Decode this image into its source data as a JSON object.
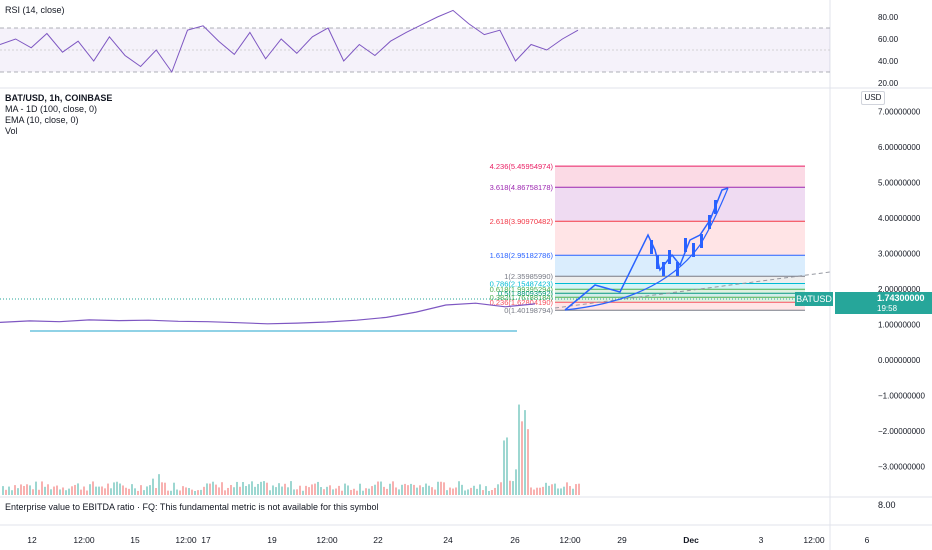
{
  "rsi": {
    "title": "RSI (14, close)",
    "axis_ticks": [
      "80.00",
      "60.00",
      "40.00",
      "20.00"
    ]
  },
  "legend": {
    "symbol": "BAT/USD, 1h, COINBASE",
    "ma": "MA - 1D (100, close, 0)",
    "ema": "EMA (10, close, 0)",
    "vol": "Vol"
  },
  "currency": "USD",
  "last_price": {
    "symbol": "BATUSD",
    "value": "1.74300000",
    "countdown": "19:58"
  },
  "price_axis": [
    "7.00000000",
    "6.00000000",
    "5.00000000",
    "4.00000000",
    "3.00000000",
    "2.00000000",
    "1.00000000",
    "0.00000000",
    "−1.00000000",
    "−2.00000000",
    "−3.00000000"
  ],
  "fund_axis": "8.00",
  "fundamental_note": "Enterprise value to EBITDA ratio · FQ: This fundamental metric is not available for this symbol",
  "time_axis": [
    "12",
    "12:00",
    "15",
    "12:00",
    "17",
    "19",
    "12:00",
    "22",
    "24",
    "26",
    "12:00",
    "29",
    "Dec",
    "3",
    "12:00",
    "6"
  ],
  "fib_labels": [
    "4.236(5.45954974)",
    "3.618(4.86758178)",
    "2.618(3.90970482)",
    "1.618(2.95182786)",
    "1(2.35985990)",
    "0.786(2.15487423)",
    "0.618(1.99395294)",
    "0.5(1.88093592)",
    "0.382(1.76788184)",
    "0.236(1.62804190)",
    "0(1.40198794)"
  ],
  "colors": {
    "up": "#26a69a",
    "down": "#ef5350",
    "rsi_line": "#7e57c2",
    "drawing": "#2962ff",
    "ma_line": "#4db6d8"
  },
  "chart_data": {
    "type": "line",
    "ylim": [
      -3.5,
      7.5
    ],
    "fib_levels": [
      {
        "ratio": "4.236",
        "price": 5.45954974
      },
      {
        "ratio": "3.618",
        "price": 4.86758178
      },
      {
        "ratio": "2.618",
        "price": 3.90970482
      },
      {
        "ratio": "1.618",
        "price": 2.95182786
      },
      {
        "ratio": "1",
        "price": 2.3598599
      },
      {
        "ratio": "0.786",
        "price": 2.15487423
      },
      {
        "ratio": "0.618",
        "price": 1.99395294
      },
      {
        "ratio": "0.5",
        "price": 1.88093592
      },
      {
        "ratio": "0.382",
        "price": 1.76788184
      },
      {
        "ratio": "0.236",
        "price": 1.6280419
      },
      {
        "ratio": "0",
        "price": 1.40198794
      }
    ],
    "last_price": 1.743,
    "ma_1d_level": 0.8,
    "price_series": [
      1.06,
      1.1,
      1.08,
      1.13,
      1.11,
      1.12,
      1.09,
      1.08,
      1.05,
      1.02,
      1.04,
      1.07,
      1.12,
      1.2,
      1.35,
      1.55,
      1.6,
      1.5,
      1.58
    ],
    "rsi_series": [
      55,
      60,
      52,
      65,
      48,
      58,
      40,
      62,
      45,
      35,
      50,
      30,
      68,
      72,
      58,
      46,
      66,
      42,
      60,
      47,
      62,
      70,
      40,
      55,
      45,
      58,
      66,
      73,
      80,
      86,
      74,
      64,
      68,
      40,
      55,
      50,
      60,
      68
    ]
  }
}
